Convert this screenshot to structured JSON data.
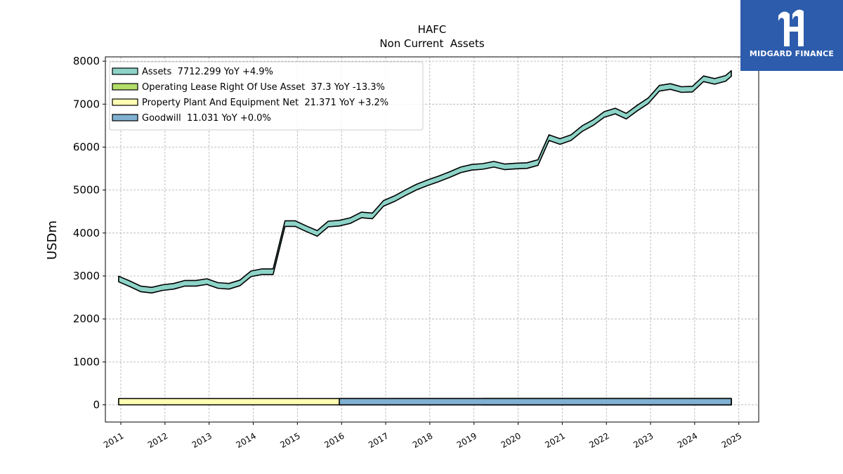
{
  "brand": {
    "name": "MIDGARD FINANCE",
    "logo_icon": "midgard-m-icon",
    "color": "#2d5cad"
  },
  "chart_data": {
    "type": "area",
    "title": "HAFC",
    "subtitle": "Non Current  Assets",
    "ylabel": "USDm",
    "xlabel": "",
    "ylim": [
      -400,
      8100
    ],
    "xlim": [
      2010.65,
      2025.45
    ],
    "grid": true,
    "legend_position": "top-left",
    "yticks": [
      0,
      1000,
      2000,
      3000,
      4000,
      5000,
      6000,
      7000,
      8000
    ],
    "ytick_labels": [
      "0",
      "1000",
      "2000",
      "3000",
      "4000",
      "5000",
      "6000",
      "7000",
      "8000"
    ],
    "xticks": [
      2011,
      2012,
      2013,
      2014,
      2015,
      2016,
      2017,
      2018,
      2019,
      2020,
      2021,
      2022,
      2023,
      2024,
      2025
    ],
    "xtick_labels": [
      "2011",
      "2012",
      "2013",
      "2014",
      "2015",
      "2016",
      "2017",
      "2018",
      "2019",
      "2020",
      "2021",
      "2022",
      "2023",
      "2024",
      "2025"
    ],
    "series": [
      {
        "name": "Assets",
        "legend_label": "Assets  7712.299 YoY +4.9%",
        "color": "#8dd3c7",
        "x": [
          2010.95,
          2011.2,
          2011.45,
          2011.7,
          2011.95,
          2012.2,
          2012.45,
          2012.7,
          2012.95,
          2013.2,
          2013.45,
          2013.7,
          2013.95,
          2014.2,
          2014.45,
          2014.72,
          2014.95,
          2015.2,
          2015.45,
          2015.7,
          2015.95,
          2016.2,
          2016.45,
          2016.7,
          2016.95,
          2017.2,
          2017.45,
          2017.7,
          2017.95,
          2018.2,
          2018.45,
          2018.7,
          2018.95,
          2019.2,
          2019.45,
          2019.7,
          2019.95,
          2020.2,
          2020.45,
          2020.7,
          2020.95,
          2021.2,
          2021.45,
          2021.7,
          2021.95,
          2022.2,
          2022.45,
          2022.7,
          2022.95,
          2023.2,
          2023.45,
          2023.7,
          2023.95,
          2024.2,
          2024.45,
          2024.7,
          2024.83
        ],
        "values": [
          2930,
          2820,
          2700,
          2670,
          2730,
          2760,
          2830,
          2830,
          2870,
          2780,
          2760,
          2840,
          3050,
          3100,
          3100,
          4220,
          4220,
          4100,
          3990,
          4210,
          4230,
          4290,
          4420,
          4400,
          4690,
          4800,
          4940,
          5070,
          5170,
          5260,
          5360,
          5470,
          5530,
          5550,
          5600,
          5540,
          5560,
          5570,
          5640,
          6220,
          6130,
          6220,
          6430,
          6570,
          6760,
          6840,
          6720,
          6910,
          7080,
          7370,
          7410,
          7340,
          7350,
          7590,
          7530,
          7600,
          7712
        ]
      },
      {
        "name": "Operating Lease Right Of Use Asset",
        "legend_label": "Operating Lease Right Of Use Asset  37.3 YoY -13.3%",
        "color": "#b3de69",
        "x": [
          2019.2,
          2019.45,
          2019.7,
          2019.95,
          2020.2,
          2020.45,
          2020.7,
          2020.95,
          2021.2,
          2021.45,
          2021.7,
          2021.95,
          2022.2,
          2022.45,
          2022.7,
          2022.95,
          2023.2,
          2023.45,
          2023.7,
          2023.95,
          2024.2,
          2024.45,
          2024.7,
          2024.83
        ],
        "values": [
          45,
          45,
          44,
          44,
          43,
          55,
          56,
          56,
          55,
          54,
          52,
          51,
          50,
          49,
          48,
          47,
          46,
          45,
          44,
          43,
          42,
          40,
          38,
          37.3
        ]
      },
      {
        "name": "Property Plant And Equipment Net",
        "legend_label": "Property Plant And Equipment Net  21.371 YoY +3.2%",
        "color": "#ffffb3",
        "x": [
          2010.95,
          2011.2,
          2011.45,
          2011.7,
          2011.95,
          2012.2,
          2012.45,
          2012.7,
          2012.95,
          2013.2,
          2013.45,
          2013.7,
          2013.95,
          2014.2,
          2014.45,
          2014.72,
          2014.95,
          2015.2,
          2015.45,
          2015.7,
          2015.95,
          2016.2,
          2016.45,
          2016.7,
          2016.95,
          2017.2,
          2017.45,
          2017.7,
          2017.95,
          2018.2,
          2018.45,
          2018.7,
          2018.95,
          2019.2,
          2019.45,
          2019.7,
          2019.95,
          2020.2,
          2020.45,
          2020.7,
          2020.95,
          2021.2,
          2021.45,
          2021.7,
          2021.95,
          2022.2,
          2022.45,
          2022.7,
          2022.95,
          2023.2,
          2023.45,
          2023.7,
          2023.95,
          2024.2,
          2024.45,
          2024.7,
          2024.83
        ],
        "values": [
          20,
          20,
          20,
          20,
          20,
          20,
          20,
          20,
          20,
          20,
          20,
          19,
          19,
          18,
          18,
          18,
          18,
          19,
          19,
          19,
          19,
          20,
          20,
          20,
          20,
          20,
          20,
          20,
          20,
          20,
          20,
          20,
          20,
          20,
          21,
          21,
          21,
          21,
          21,
          21,
          21,
          21,
          21,
          21,
          21,
          21,
          21,
          21,
          21,
          21,
          21,
          21,
          21,
          21,
          21,
          21,
          21.371
        ]
      },
      {
        "name": "Goodwill",
        "legend_label": "Goodwill  11.031 YoY +0.0%",
        "color": "#80b1d3",
        "x": [
          2015.95,
          2016.2,
          2016.45,
          2016.7,
          2016.95,
          2017.2,
          2017.45,
          2017.7,
          2017.95,
          2018.2,
          2018.45,
          2018.7,
          2018.95,
          2019.2,
          2019.45,
          2019.7,
          2019.95,
          2020.2,
          2020.45,
          2020.7,
          2020.95,
          2021.2,
          2021.45,
          2021.7,
          2021.95,
          2022.2,
          2022.45,
          2022.7,
          2022.95,
          2023.2,
          2023.45,
          2023.7,
          2023.95,
          2024.2,
          2024.45,
          2024.7,
          2024.83
        ],
        "values": [
          11.031,
          11.031,
          11.031,
          11.031,
          11.031,
          11.031,
          11.031,
          11.031,
          11.031,
          11.031,
          11.031,
          11.031,
          11.031,
          11.031,
          11.031,
          11.031,
          11.031,
          11.031,
          11.031,
          11.031,
          11.031,
          11.031,
          11.031,
          11.031,
          11.031,
          11.031,
          11.031,
          11.031,
          11.031,
          11.031,
          11.031,
          11.031,
          11.031,
          11.031,
          11.031,
          11.031,
          11.031
        ]
      }
    ]
  }
}
